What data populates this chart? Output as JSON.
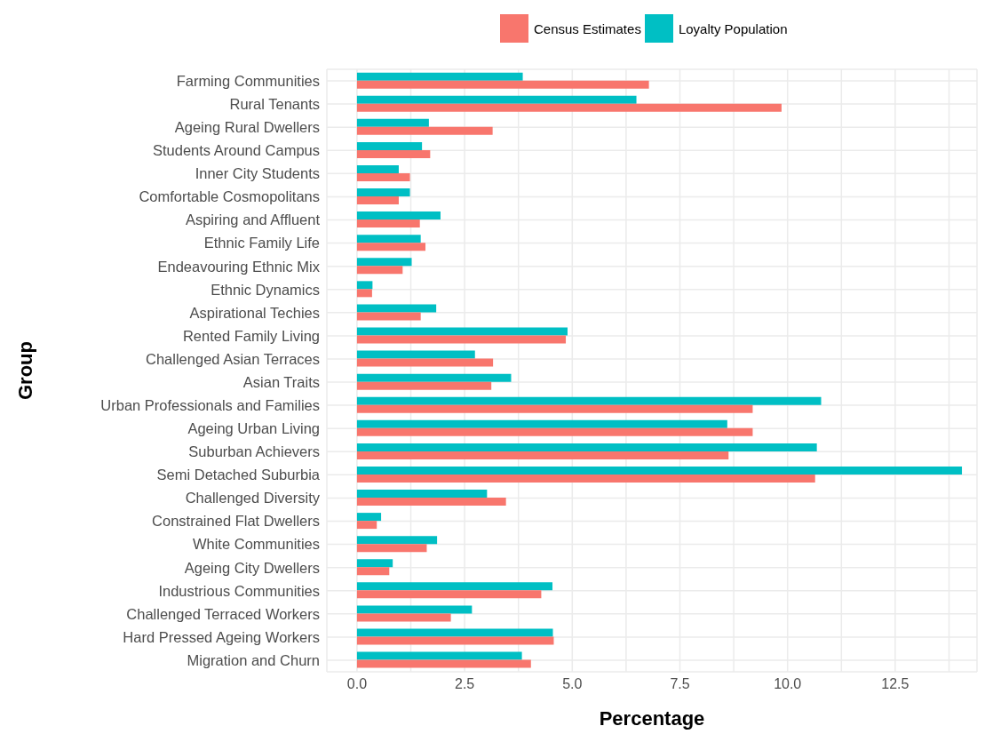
{
  "chart_data": {
    "type": "bar",
    "orientation": "horizontal",
    "xlabel": "Percentage",
    "ylabel": "Group",
    "categories": [
      "Farming Communities",
      "Rural Tenants",
      "Ageing Rural Dwellers",
      "Students Around Campus",
      "Inner City Students",
      "Comfortable Cosmopolitans",
      "Aspiring and Affluent",
      "Ethnic Family Life",
      "Endeavouring Ethnic Mix",
      "Ethnic Dynamics",
      "Aspirational Techies",
      "Rented Family Living",
      "Challenged Asian Terraces",
      "Asian Traits",
      "Urban Professionals and Families",
      "Ageing Urban Living",
      "Suburban Achievers",
      "Semi Detached Suburbia",
      "Challenged Diversity",
      "Constrained Flat Dwellers",
      "White Communities",
      "Ageing City Dwellers",
      "Industrious Communities",
      "Challenged Terraced Workers",
      "Hard Pressed Ageing Workers",
      "Migration and Churn"
    ],
    "series": [
      {
        "name": "Census Estimates",
        "color": "#f8766d",
        "values": [
          6.78,
          9.86,
          3.15,
          1.7,
          1.23,
          0.97,
          1.46,
          1.59,
          1.06,
          0.35,
          1.48,
          4.85,
          3.16,
          3.12,
          9.19,
          9.19,
          8.63,
          10.64,
          3.46,
          0.46,
          1.62,
          0.75,
          4.28,
          2.18,
          4.57,
          4.04
        ]
      },
      {
        "name": "Loyalty Population",
        "color": "#00bfc4",
        "values": [
          3.85,
          6.49,
          1.67,
          1.51,
          0.97,
          1.23,
          1.94,
          1.48,
          1.27,
          0.36,
          1.84,
          4.89,
          2.74,
          3.58,
          10.78,
          8.6,
          10.68,
          14.05,
          3.02,
          0.56,
          1.86,
          0.83,
          4.54,
          2.67,
          4.55,
          3.83
        ]
      }
    ],
    "xlim": [
      -0.7,
      14.4
    ],
    "xticks": [
      {
        "value": 0,
        "label": "0.0"
      },
      {
        "value": 1.25,
        "label": null
      },
      2.5,
      {
        "value": 3.75,
        "label": null
      },
      {
        "value": 5,
        "label": "5.0"
      },
      {
        "value": 6.25,
        "label": null
      },
      7.5,
      {
        "value": 8.75,
        "label": null
      },
      {
        "value": 10,
        "label": "10.0"
      },
      {
        "value": 11.25,
        "label": null
      },
      12.5,
      {
        "value": 13.75,
        "label": null
      }
    ],
    "grid": true,
    "legend": "top"
  }
}
